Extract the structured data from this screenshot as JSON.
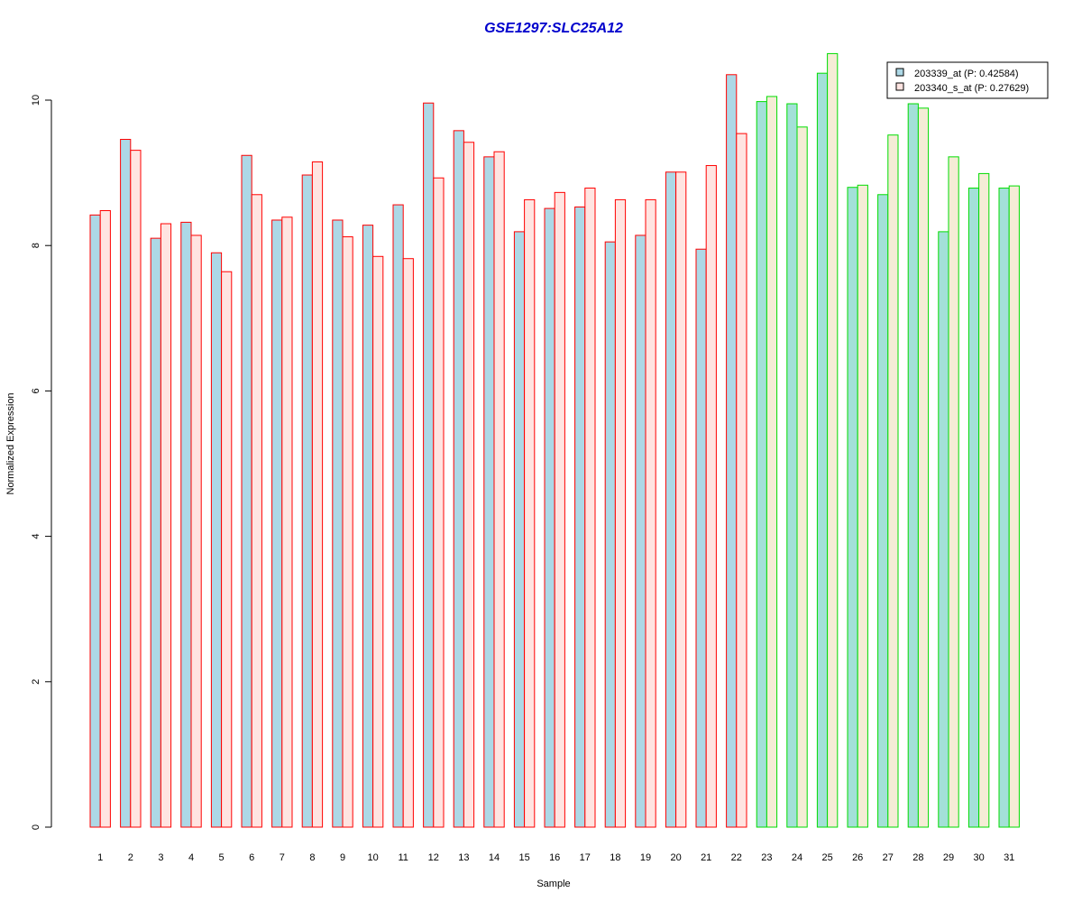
{
  "chart_data": {
    "type": "bar",
    "title": "GSE1297:SLC25A12",
    "title_color": "#0000cc",
    "xlabel": "Sample",
    "ylabel": "Normalized Expression",
    "ylim": [
      0,
      10.7
    ],
    "yticks": [
      0,
      2,
      4,
      6,
      8,
      10
    ],
    "categories": [
      "1",
      "2",
      "3",
      "4",
      "5",
      "6",
      "7",
      "8",
      "9",
      "10",
      "11",
      "12",
      "13",
      "14",
      "15",
      "16",
      "17",
      "18",
      "19",
      "20",
      "21",
      "22",
      "23",
      "24",
      "25",
      "26",
      "27",
      "28",
      "29",
      "30",
      "31"
    ],
    "series": [
      {
        "name": "203339_at (P: 0.42584)",
        "values": [
          8.42,
          9.46,
          8.1,
          8.32,
          7.9,
          9.24,
          8.35,
          8.97,
          8.35,
          8.28,
          8.56,
          9.96,
          9.58,
          9.22,
          8.19,
          8.51,
          8.53,
          8.05,
          8.14,
          9.01,
          7.95,
          10.35,
          9.98,
          9.95,
          10.37,
          8.8,
          8.7,
          9.95,
          8.19,
          8.79,
          8.79
        ]
      },
      {
        "name": "203340_s_at (P: 0.27629)",
        "values": [
          8.48,
          9.31,
          8.3,
          8.14,
          7.64,
          8.7,
          8.39,
          9.15,
          8.12,
          7.85,
          7.82,
          8.93,
          9.42,
          9.29,
          8.63,
          8.73,
          8.79,
          8.63,
          8.63,
          9.01,
          9.1,
          9.54,
          10.05,
          9.63,
          10.64,
          8.83,
          9.52,
          9.89,
          9.22,
          8.99,
          8.82
        ]
      }
    ],
    "group_border_colors": [
      "#ff0000",
      "#ff0000",
      "#ff0000",
      "#ff0000",
      "#ff0000",
      "#ff0000",
      "#ff0000",
      "#ff0000",
      "#ff0000",
      "#ff0000",
      "#ff0000",
      "#ff0000",
      "#ff0000",
      "#ff0000",
      "#ff0000",
      "#ff0000",
      "#ff0000",
      "#ff0000",
      "#ff0000",
      "#ff0000",
      "#ff0000",
      "#ff0000",
      "#00dd00",
      "#00dd00",
      "#00dd00",
      "#00dd00",
      "#00dd00",
      "#00dd00",
      "#00dd00",
      "#00dd00",
      "#00dd00"
    ],
    "series_fills_red_group": [
      "#add8e6",
      "#ffe4e1"
    ],
    "series_fills_green_group": [
      "#a3e0d8",
      "#f5ecd6"
    ],
    "legend_fill_colors": [
      "#add8e6",
      "#ffe4e1"
    ],
    "legend_position": "top-right",
    "grid": false
  }
}
